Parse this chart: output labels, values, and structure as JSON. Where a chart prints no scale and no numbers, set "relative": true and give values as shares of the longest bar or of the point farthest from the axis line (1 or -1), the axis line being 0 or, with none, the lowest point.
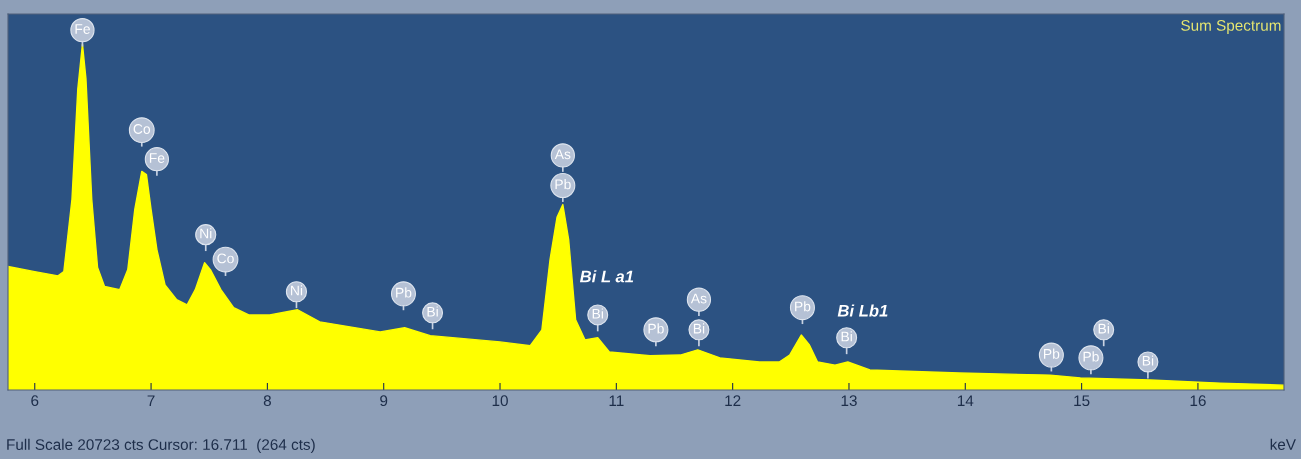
{
  "chart_data": {
    "type": "area",
    "title": "Sum Spectrum",
    "xlabel": "keV",
    "relative": true,
    "color": "#ffff00",
    "x": [
      5.77,
      6.0,
      6.2,
      6.25,
      6.32,
      6.37,
      6.41,
      6.44,
      6.49,
      6.54,
      6.6,
      6.73,
      6.8,
      6.86,
      6.92,
      6.96,
      7.0,
      7.05,
      7.12,
      7.22,
      7.31,
      7.38,
      7.46,
      7.51,
      7.6,
      7.71,
      7.84,
      8.02,
      8.26,
      8.45,
      8.97,
      9.18,
      9.4,
      10.0,
      10.26,
      10.36,
      10.43,
      10.49,
      10.54,
      10.59,
      10.65,
      10.73,
      10.84,
      10.94,
      11.29,
      11.55,
      11.7,
      11.89,
      12.23,
      12.4,
      12.49,
      12.59,
      12.66,
      12.73,
      12.88,
      12.99,
      13.18,
      13.95,
      14.73,
      14.99,
      15.59,
      16.19,
      16.74
    ],
    "values": [
      0.357,
      0.342,
      0.33,
      0.342,
      0.551,
      0.87,
      1.0,
      0.9,
      0.551,
      0.354,
      0.299,
      0.29,
      0.348,
      0.522,
      0.632,
      0.623,
      0.522,
      0.406,
      0.304,
      0.261,
      0.246,
      0.29,
      0.368,
      0.348,
      0.29,
      0.238,
      0.217,
      0.217,
      0.232,
      0.197,
      0.168,
      0.18,
      0.157,
      0.139,
      0.128,
      0.174,
      0.377,
      0.499,
      0.536,
      0.435,
      0.203,
      0.145,
      0.151,
      0.11,
      0.099,
      0.101,
      0.116,
      0.093,
      0.081,
      0.081,
      0.101,
      0.159,
      0.13,
      0.081,
      0.072,
      0.081,
      0.058,
      0.049,
      0.043,
      0.035,
      0.029,
      0.02,
      0.014
    ],
    "xlim": [
      5.77,
      16.74
    ],
    "xticks": [
      6,
      7,
      8,
      9,
      10,
      11,
      12,
      13,
      14,
      15,
      16
    ],
    "annotations": [
      {
        "text": "Fe",
        "x": 6.41,
        "y": 1.04
      },
      {
        "text": "Co",
        "x": 6.92,
        "y": 0.751
      },
      {
        "text": "Fe",
        "x": 7.05,
        "y": 0.667
      },
      {
        "text": "Ni",
        "x": 7.47,
        "y": 0.449
      },
      {
        "text": "Co",
        "x": 7.64,
        "y": 0.377
      },
      {
        "text": "Ni",
        "x": 8.25,
        "y": 0.284
      },
      {
        "text": "Pb",
        "x": 9.17,
        "y": 0.278
      },
      {
        "text": "Bi",
        "x": 9.42,
        "y": 0.223
      },
      {
        "text": "As",
        "x": 10.54,
        "y": 0.678
      },
      {
        "text": "Pb",
        "x": 10.54,
        "y": 0.591
      },
      {
        "text": "Bi",
        "x": 10.84,
        "y": 0.217
      },
      {
        "text": "Pb",
        "x": 11.34,
        "y": 0.174
      },
      {
        "text": "As",
        "x": 11.71,
        "y": 0.261
      },
      {
        "text": "Bi",
        "x": 11.71,
        "y": 0.174
      },
      {
        "text": "Pb",
        "x": 12.6,
        "y": 0.238
      },
      {
        "text": "Bi",
        "x": 12.98,
        "y": 0.151
      },
      {
        "text": "Pb",
        "x": 14.74,
        "y": 0.101
      },
      {
        "text": "Pb",
        "x": 15.08,
        "y": 0.093
      },
      {
        "text": "Bi",
        "x": 15.19,
        "y": 0.174
      },
      {
        "text": "Bi",
        "x": 15.57,
        "y": 0.081
      },
      "Bi L a1",
      "Bi Lb1",
      "Full Scale 20723 cts Cursor: 16.711  (264 cts)"
    ]
  }
}
